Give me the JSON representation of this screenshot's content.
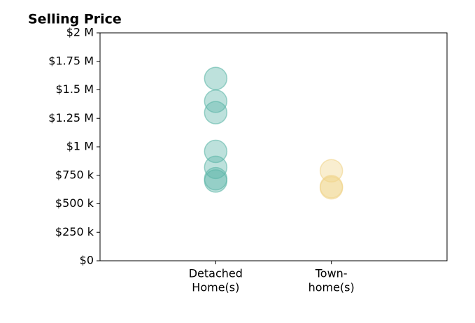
{
  "chart_data": {
    "type": "strip",
    "title": "Selling Price",
    "categories": [
      [
        "Detached",
        "Home(s)"
      ],
      [
        "Town-",
        "home(s)"
      ]
    ],
    "values": [
      [
        1600000,
        1400000,
        1300000,
        960000,
        820000,
        720000,
        700000
      ],
      [
        790000,
        650000,
        640000
      ]
    ],
    "colors": [
      "#5bb5a7",
      "#f0d48a"
    ],
    "xlim": [
      0,
      3
    ],
    "ylim": [
      0,
      2000000
    ],
    "yticks": [
      {
        "value": 0,
        "label": "$0"
      },
      {
        "value": 250000,
        "label": "$250 k"
      },
      {
        "value": 500000,
        "label": "$500 k"
      },
      {
        "value": 750000,
        "label": "$750 k"
      },
      {
        "value": 1000000,
        "label": "$1 M"
      },
      {
        "value": 1250000,
        "label": "$1.25 M"
      },
      {
        "value": 1500000,
        "label": "$1.5 M"
      },
      {
        "value": 1750000,
        "label": "$1.75 M"
      },
      {
        "value": 2000000,
        "label": "$2 M"
      }
    ],
    "grid": false
  }
}
